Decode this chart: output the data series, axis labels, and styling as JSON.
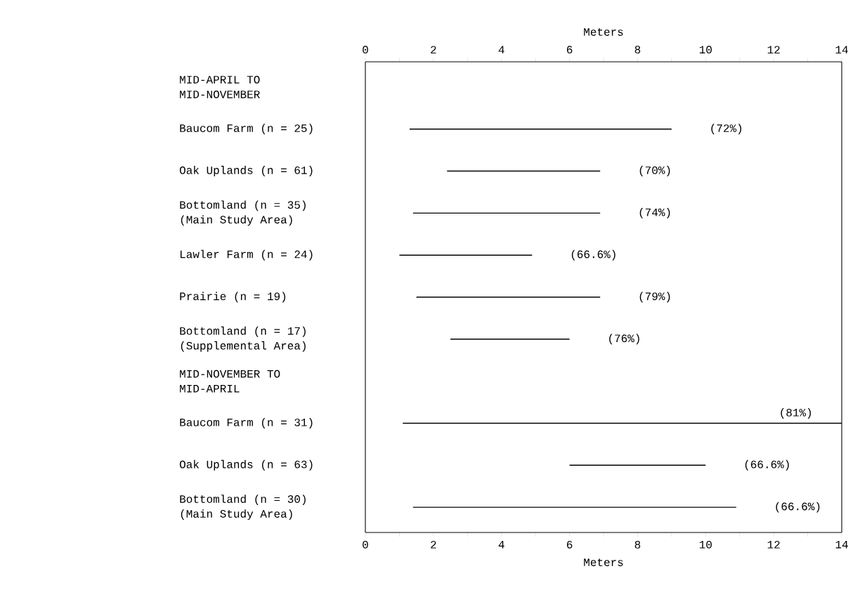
{
  "chart_data": {
    "type": "bar",
    "orientation": "horizontal",
    "color": "#000000",
    "categories": [
      "MID-APRIL TO MID-NOVEMBER",
      "Baucom Farm (n = 25)",
      "Oak Uplands (n = 61)",
      "Bottomland (n = 35) (Main Study Area)",
      "Lawler Farm (n = 24)",
      "Prairie (n = 19)",
      "Bottomland (n = 17) (Supplemental Area)",
      "MID-NOVEMBER TO MID-APRIL",
      "Baucom Farm (n = 31)",
      "Oak Uplands (n = 63)",
      "Bottomland (n = 30) (Main Study Area)"
    ],
    "base": [
      null,
      1.3,
      2.4,
      1.4,
      1.0,
      1.5,
      2.5,
      null,
      1.1,
      6.0,
      1.4
    ],
    "values": [
      null,
      7.7,
      4.5,
      5.5,
      3.9,
      5.4,
      3.5,
      null,
      12.9,
      4.0,
      9.5
    ],
    "annotations": [
      "(72%)",
      "(70%)",
      "(74%)",
      "(66.6%)",
      "(79%)",
      "(76%)",
      "(81%)",
      "(66.6%)",
      "(66.6%)"
    ],
    "xlabel": "Meters",
    "xlim": [
      0,
      14
    ],
    "xticks": [
      0,
      2,
      4,
      6,
      8,
      10,
      12,
      14
    ],
    "x2label": "Meters",
    "x2lim": [
      0,
      14
    ],
    "x2ticks": [
      0,
      2,
      4,
      6,
      8,
      10,
      12,
      14
    ]
  }
}
